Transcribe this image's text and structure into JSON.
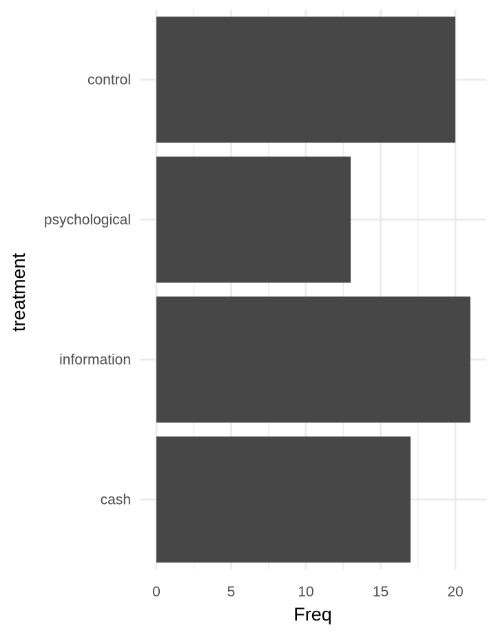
{
  "chart_data": {
    "type": "bar",
    "orientation": "horizontal",
    "categories": [
      "control",
      "psychological",
      "information",
      "cash"
    ],
    "values": [
      20,
      13,
      21,
      17
    ],
    "xlabel": "Freq",
    "ylabel": "treatment",
    "x_ticks": [
      "0",
      "5",
      "10",
      "15",
      "20"
    ],
    "xlim": [
      0,
      22
    ],
    "grid": true,
    "bar_color": "#474747",
    "grid_color": "#ebebeb"
  }
}
